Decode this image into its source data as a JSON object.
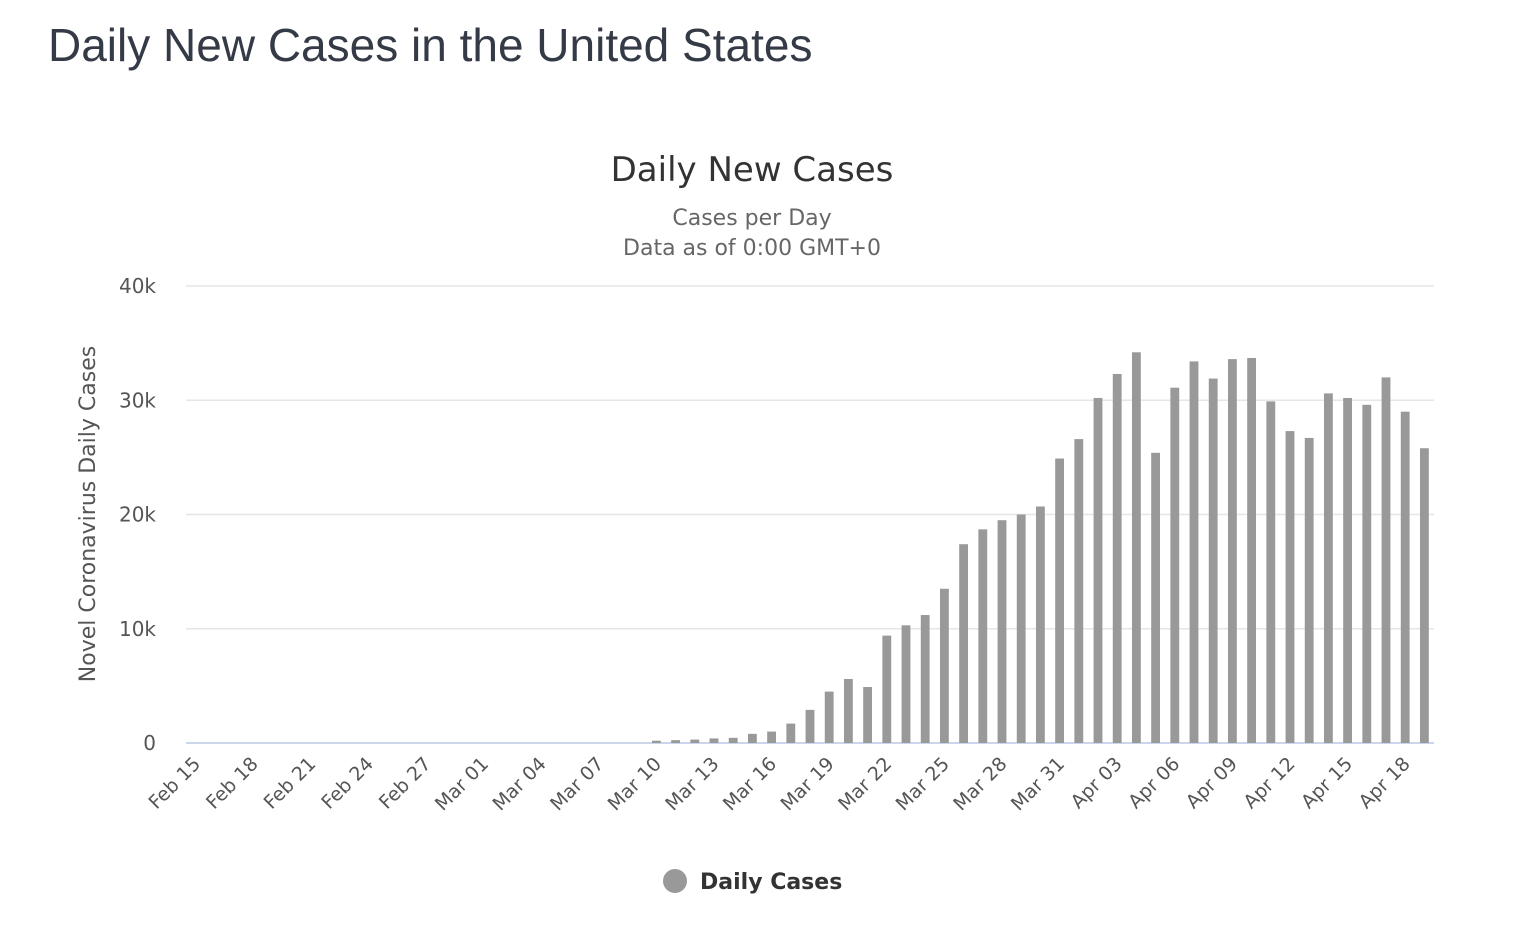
{
  "page": {
    "title": "Daily New Cases in the United States"
  },
  "chart_data": {
    "type": "bar",
    "title": "Daily New Cases",
    "subtitle_lines": [
      "Cases per Day",
      "Data as of 0:00 GMT+0"
    ],
    "xlabel": "",
    "ylabel": "Novel Coronavirus Daily Cases",
    "ylim": [
      0,
      40000
    ],
    "y_ticks": [
      0,
      10000,
      20000,
      30000,
      40000
    ],
    "y_tick_labels": [
      "0",
      "10k",
      "20k",
      "30k",
      "40k"
    ],
    "grid": true,
    "legend_position": "bottom-center",
    "bar_color": "#999999",
    "x_tick_labels": [
      "Feb 15",
      "Feb 18",
      "Feb 21",
      "Feb 24",
      "Feb 27",
      "Mar 01",
      "Mar 04",
      "Mar 07",
      "Mar 10",
      "Mar 13",
      "Mar 16",
      "Mar 19",
      "Mar 22",
      "Mar 25",
      "Mar 28",
      "Mar 31",
      "Apr 03",
      "Apr 06",
      "Apr 09",
      "Apr 12",
      "Apr 15",
      "Apr 18"
    ],
    "categories": [
      "Feb 15",
      "Feb 16",
      "Feb 17",
      "Feb 18",
      "Feb 19",
      "Feb 20",
      "Feb 21",
      "Feb 22",
      "Feb 23",
      "Feb 24",
      "Feb 25",
      "Feb 26",
      "Feb 27",
      "Feb 28",
      "Feb 29",
      "Mar 01",
      "Mar 02",
      "Mar 03",
      "Mar 04",
      "Mar 05",
      "Mar 06",
      "Mar 07",
      "Mar 08",
      "Mar 09",
      "Mar 10",
      "Mar 11",
      "Mar 12",
      "Mar 13",
      "Mar 14",
      "Mar 15",
      "Mar 16",
      "Mar 17",
      "Mar 18",
      "Mar 19",
      "Mar 20",
      "Mar 21",
      "Mar 22",
      "Mar 23",
      "Mar 24",
      "Mar 25",
      "Mar 26",
      "Mar 27",
      "Mar 28",
      "Mar 29",
      "Mar 30",
      "Mar 31",
      "Apr 01",
      "Apr 02",
      "Apr 03",
      "Apr 04",
      "Apr 05",
      "Apr 06",
      "Apr 07",
      "Apr 08",
      "Apr 09",
      "Apr 10",
      "Apr 11",
      "Apr 12",
      "Apr 13",
      "Apr 14",
      "Apr 15",
      "Apr 16",
      "Apr 17",
      "Apr 18",
      "Apr 19"
    ],
    "series": [
      {
        "name": "Daily Cases",
        "values": [
          0,
          0,
          0,
          0,
          0,
          0,
          0,
          0,
          0,
          0,
          0,
          0,
          0,
          0,
          0,
          0,
          0,
          0,
          0,
          0,
          0,
          0,
          0,
          0,
          200,
          250,
          300,
          400,
          450,
          800,
          1000,
          1700,
          2900,
          4500,
          5600,
          4900,
          9400,
          10300,
          11200,
          13500,
          17400,
          18700,
          19500,
          20000,
          20700,
          24900,
          26600,
          30200,
          32300,
          34200,
          25400,
          31100,
          33400,
          31900,
          33600,
          33700,
          29900,
          27300,
          26700,
          30600,
          30200,
          29600,
          32000,
          29000,
          25800
        ]
      }
    ]
  }
}
